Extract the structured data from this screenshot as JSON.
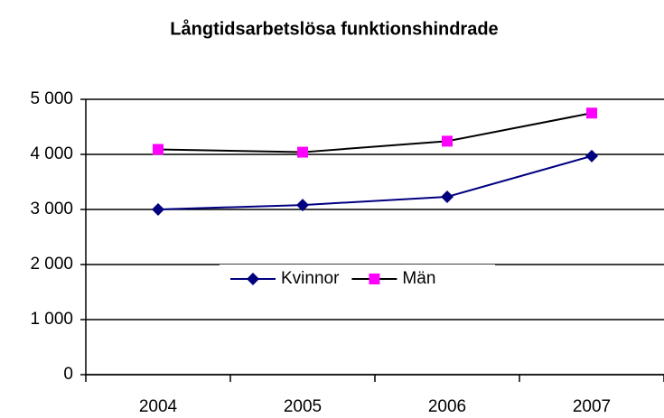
{
  "chart_data": {
    "type": "line",
    "title": "Långtidsarbetslösa funktionshindrade",
    "categories": [
      "2004",
      "2005",
      "2006",
      "2007"
    ],
    "series": [
      {
        "name": "Kvinnor",
        "color": "#000080",
        "marker_color": "#000080",
        "marker": "diamond",
        "values": [
          3000,
          3080,
          3230,
          3970
        ]
      },
      {
        "name": "Män",
        "color": "#000000",
        "marker_color": "#ff00ff",
        "marker": "square",
        "values": [
          4090,
          4040,
          4240,
          4750
        ]
      }
    ],
    "ylim": [
      0,
      5000
    ],
    "yticks": [
      0,
      {
        "value": 1000,
        "label": "1 000"
      },
      {
        "value": 2000,
        "label": "2 000"
      },
      {
        "value": 3000,
        "label": "3 000"
      },
      {
        "value": 4000,
        "label": "4 000"
      },
      {
        "value": 5000,
        "label": "5 000"
      }
    ],
    "grid": true,
    "legend": "center"
  }
}
